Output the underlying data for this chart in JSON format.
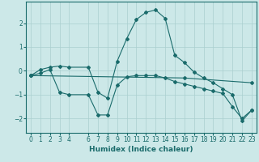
{
  "xlabel": "Humidex (Indice chaleur)",
  "bg_color": "#cce8e8",
  "line_color": "#1a6b6b",
  "grid_color": "#aacfcf",
  "xlim": [
    -0.5,
    23.5
  ],
  "ylim": [
    -2.6,
    2.9
  ],
  "xticks": [
    0,
    1,
    2,
    3,
    4,
    6,
    7,
    8,
    9,
    10,
    11,
    12,
    13,
    14,
    15,
    16,
    17,
    18,
    19,
    20,
    21,
    22,
    23
  ],
  "yticks": [
    -2,
    -1,
    0,
    1,
    2
  ],
  "lines": [
    {
      "x": [
        0,
        1,
        2,
        3,
        4,
        6,
        7,
        8,
        9,
        10,
        11,
        12,
        13,
        14,
        15,
        16,
        17,
        18,
        19,
        20,
        21,
        22,
        23
      ],
      "y": [
        -0.2,
        0.05,
        0.15,
        0.2,
        0.15,
        0.15,
        -0.9,
        -1.15,
        0.4,
        1.35,
        2.15,
        2.45,
        2.55,
        2.2,
        0.65,
        0.35,
        -0.05,
        -0.3,
        -0.5,
        -0.75,
        -1.0,
        -2.1,
        -1.65
      ]
    },
    {
      "x": [
        0,
        1,
        2,
        3,
        4,
        6,
        7,
        8,
        9,
        10,
        11,
        12,
        13,
        14,
        15,
        16,
        17,
        18,
        19,
        20,
        21,
        22,
        23
      ],
      "y": [
        -0.2,
        -0.1,
        0.05,
        -0.9,
        -1.0,
        -1.0,
        -1.85,
        -1.85,
        -0.6,
        -0.25,
        -0.2,
        -0.2,
        -0.2,
        -0.3,
        -0.45,
        -0.55,
        -0.65,
        -0.75,
        -0.85,
        -0.95,
        -1.5,
        -2.0,
        -1.65
      ]
    },
    {
      "x": [
        0,
        16,
        23
      ],
      "y": [
        -0.2,
        -0.3,
        -0.5
      ]
    }
  ]
}
